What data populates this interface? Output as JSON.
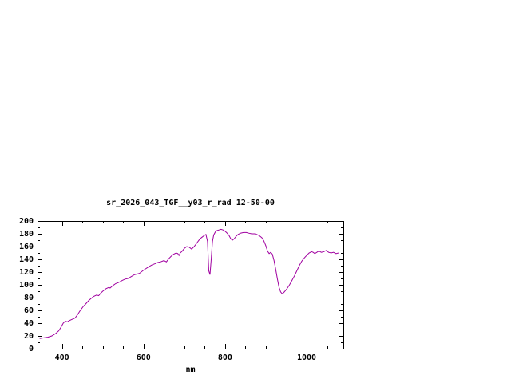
{
  "window": {
    "background": "#ffffff"
  },
  "chart_data": {
    "type": "line",
    "title": "sr_2026_043_TGF__y03_r_rad 12-50-00",
    "xlabel": "nm",
    "ylabel": "",
    "xlim": [
      340,
      1090
    ],
    "ylim": [
      0,
      200
    ],
    "grid": false,
    "legend": "none",
    "axis_color": "#000000",
    "xticks": [
      400,
      600,
      800,
      1000
    ],
    "xtick_labels": [
      "400",
      "600",
      "800",
      "1000"
    ],
    "xtick_minor_step": 50,
    "yticks": [
      0,
      20,
      40,
      60,
      80,
      100,
      120,
      140,
      160,
      180,
      200
    ],
    "ytick_labels": [
      "0",
      "20",
      "40",
      "60",
      "80",
      "100",
      "120",
      "140",
      "160",
      "180",
      "200"
    ],
    "ytick_minor_step": 10,
    "series": [
      {
        "name": "sr_2026_043_TGF__y03_r_rad 12-50-00",
        "color": "#a000a0",
        "x": [
          345,
          355,
          365,
          375,
          385,
          392,
          398,
          403,
          408,
          413,
          418,
          425,
          432,
          438,
          445,
          452,
          458,
          465,
          472,
          478,
          485,
          490,
          495,
          500,
          508,
          515,
          518,
          525,
          532,
          540,
          548,
          555,
          562,
          570,
          578,
          585,
          590,
          598,
          605,
          612,
          620,
          628,
          635,
          642,
          650,
          656,
          662,
          668,
          674,
          680,
          684,
          687,
          690,
          695,
          700,
          706,
          712,
          718,
          724,
          730,
          736,
          742,
          748,
          753,
          757,
          760,
          763,
          766,
          769,
          772,
          776,
          780,
          785,
          790,
          795,
          800,
          805,
          810,
          814,
          818,
          822,
          827,
          832,
          838,
          845,
          852,
          858,
          865,
          872,
          878,
          884,
          890,
          895,
          900,
          904,
          908,
          912,
          916,
          920,
          924,
          928,
          932,
          936,
          940,
          944,
          948,
          953,
          958,
          964,
          970,
          976,
          982,
          988,
          994,
          1000,
          1006,
          1012,
          1016,
          1020,
          1025,
          1030,
          1036,
          1042,
          1048,
          1054,
          1060,
          1066,
          1072,
          1078
        ],
        "y": [
          16,
          17,
          18,
          20,
          24,
          28,
          34,
          40,
          43,
          42,
          44,
          46,
          48,
          53,
          60,
          66,
          70,
          75,
          79,
          82,
          84,
          83,
          87,
          90,
          94,
          96,
          95,
          99,
          102,
          104,
          107,
          109,
          110,
          113,
          116,
          117,
          118,
          122,
          125,
          128,
          131,
          133,
          135,
          136,
          138,
          136,
          141,
          145,
          148,
          150,
          149,
          146,
          150,
          153,
          157,
          160,
          159,
          156,
          160,
          165,
          170,
          174,
          177,
          179,
          168,
          122,
          116,
          140,
          168,
          178,
          183,
          185,
          186,
          187,
          186,
          184,
          181,
          177,
          172,
          170,
          172,
          176,
          179,
          181,
          182,
          182,
          181,
          180,
          180,
          179,
          177,
          174,
          169,
          161,
          153,
          149,
          151,
          148,
          138,
          125,
          110,
          97,
          89,
          86,
          88,
          91,
          95,
          100,
          107,
          114,
          122,
          130,
          137,
          142,
          146,
          150,
          152,
          151,
          149,
          151,
          153,
          151,
          152,
          154,
          151,
          150,
          151,
          149,
          150
        ]
      }
    ]
  }
}
